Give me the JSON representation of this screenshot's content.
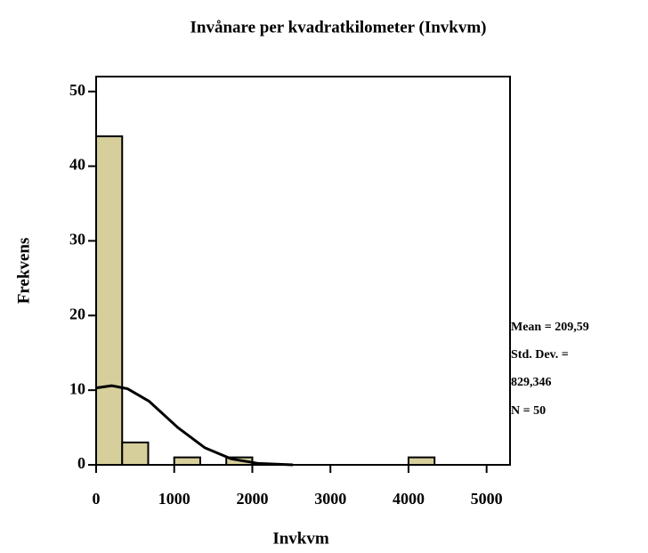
{
  "chart_data": {
    "type": "histogram",
    "title": "Invånare per kvadratkilometer (Invkvm)",
    "x_label": "Invkvm",
    "y_label": "Frekvens",
    "bins": [
      0,
      333.33,
      666.67,
      1000,
      1333.33,
      1666.67,
      2000,
      2333.33,
      2666.67,
      3000,
      3333.33,
      3666.67,
      4000,
      4333.33
    ],
    "values": [
      44,
      3,
      0,
      1,
      0,
      1,
      0,
      0,
      0,
      0,
      0,
      0,
      1
    ],
    "color": "#d6cf9c",
    "curve": {
      "x": [
        0,
        200,
        400,
        680,
        1045,
        1390,
        1730,
        2070,
        2520
      ],
      "values": [
        10.3,
        10.6,
        10.2,
        8.5,
        5,
        2.3,
        0.8,
        0.2,
        0
      ]
    },
    "xlim": [
      0,
      5300
    ],
    "ylim": [
      0,
      52
    ],
    "xticks": [
      0,
      1000,
      2000,
      3000,
      4000,
      5000
    ],
    "yticks": [
      0,
      10,
      20,
      30,
      40,
      50
    ],
    "stats": [
      "Mean = 209,59",
      "Std. Dev. =",
      "829,346",
      "N = 50"
    ]
  }
}
